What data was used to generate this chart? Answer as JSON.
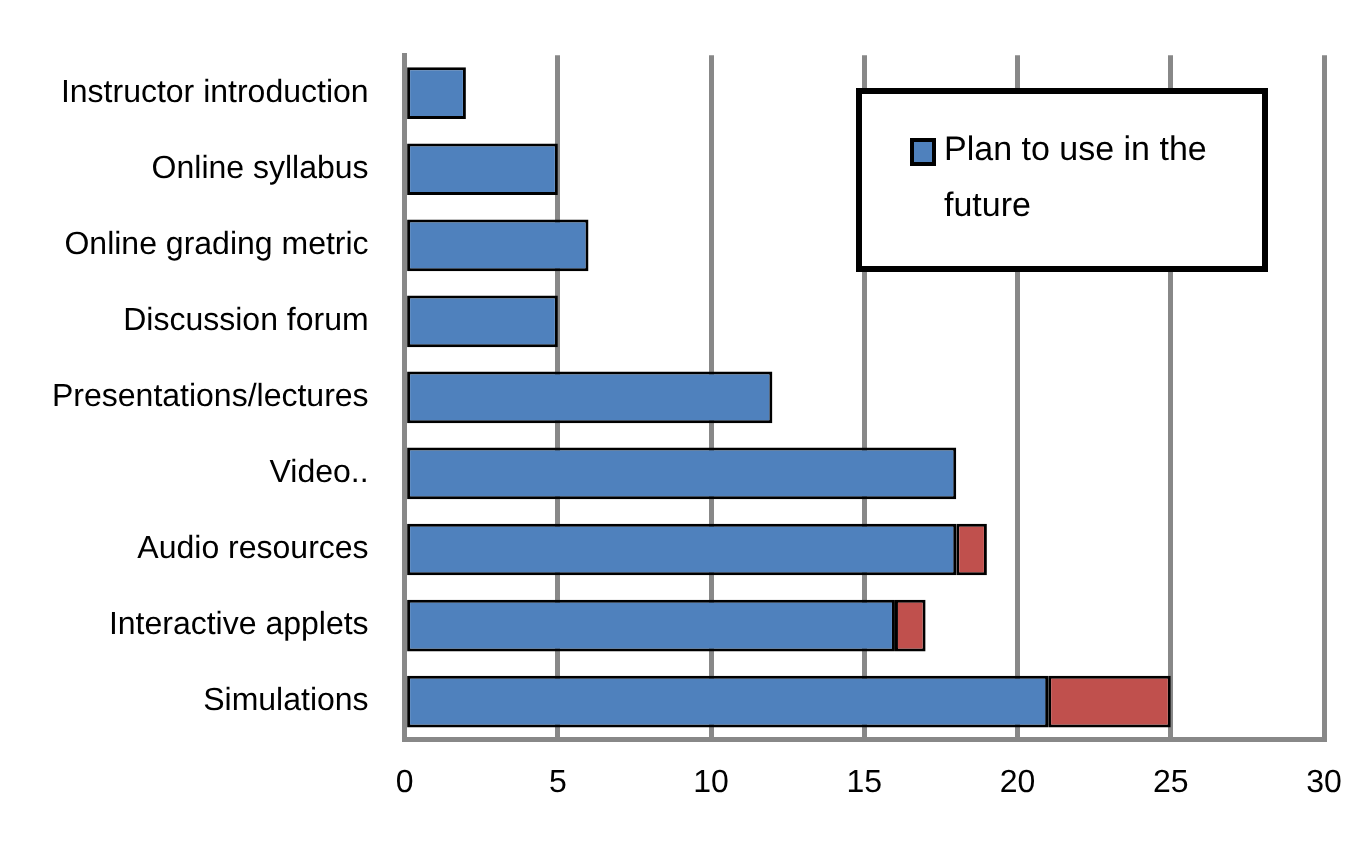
{
  "chart_data": {
    "type": "bar",
    "orientation": "horizontal",
    "stacked": true,
    "categories": [
      "Instructor introduction",
      "Online syllabus",
      "Online grading metric",
      "Discussion forum",
      "Presentations/lectures",
      "Video..",
      "Audio resources",
      "Interactive applets",
      "Simulations"
    ],
    "series": [
      {
        "name": "Plan to use in the future",
        "color": "#4f81bd",
        "values": [
          2,
          5,
          6,
          5,
          12,
          18,
          18,
          16,
          21
        ]
      },
      {
        "color": "#c0504d",
        "values": [
          null,
          null,
          null,
          null,
          null,
          null,
          1,
          1,
          4
        ]
      }
    ],
    "xlim": [
      0,
      30
    ],
    "xticks": [
      0,
      5,
      10,
      15,
      20,
      25,
      30
    ],
    "grid": "x",
    "legend": "top right"
  }
}
